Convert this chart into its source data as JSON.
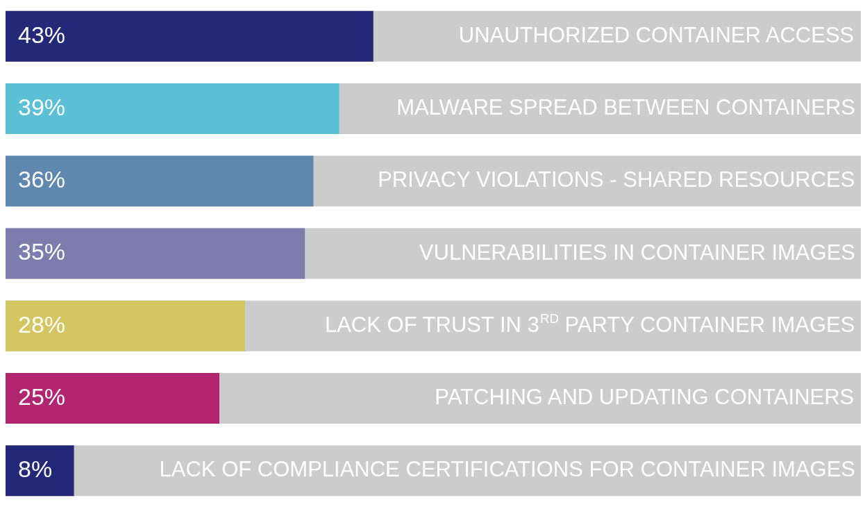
{
  "chart_data": {
    "type": "bar",
    "orientation": "horizontal",
    "categories": [
      "UNAUTHORIZED CONTAINER ACCESS",
      "MALWARE SPREAD BETWEEN CONTAINERS",
      "PRIVACY VIOLATIONS - SHARED RESOURCES",
      "VULNERABILITIES IN CONTAINER IMAGES",
      "LACK OF TRUST IN 3$^{RD}$ PARTY CONTAINER IMAGES",
      "PATCHING AND UPDATING CONTAINERS",
      "LACK OF COMPLIANCE CERTIFICATIONS FOR CONTAINER IMAGES"
    ],
    "values": [
      43,
      39,
      36,
      35,
      28,
      25,
      8
    ],
    "value_labels": [
      "43%",
      "39%",
      "36%",
      "35%",
      "28%",
      "25%",
      "8%"
    ],
    "colors": [
      "#232878",
      "#5bbfd6",
      "#6088ae",
      "#7d7dad",
      "#d3c55f",
      "#b22570",
      "#232878"
    ],
    "xlim": [
      0,
      100
    ],
    "legend": false
  }
}
